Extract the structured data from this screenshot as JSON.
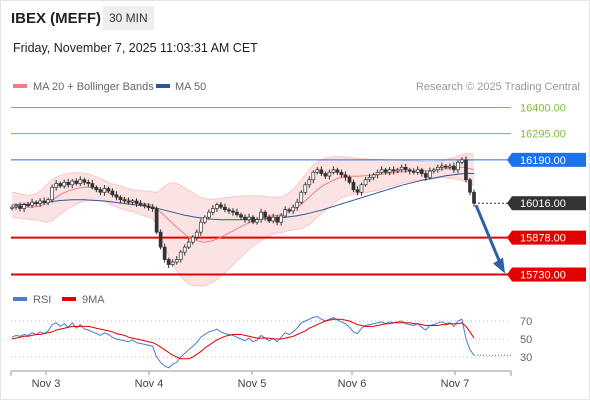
{
  "header": {
    "title": "IBEX (MEFF)",
    "timeframe": "30 MIN",
    "datetime": "Friday, November 7, 2025 11:03:31 AM CET"
  },
  "colors": {
    "bollinger": "#f08080",
    "ma50": "#2f5597",
    "candle": "#333333",
    "support": "#e50000",
    "resistance": "#7cbf3a",
    "last_price": "#333333",
    "pivot": "#1a73e8",
    "arrow": "#2c5fa8",
    "rsi": "#4a7bd0",
    "rsi_ma": "#e50000"
  },
  "legend": {
    "ma20": "MA 20 + Bollinger Bands",
    "ma50": "MA 50",
    "copyright": "Research © 2025 Trading Central"
  },
  "rsi_legend": {
    "rsi": "RSI",
    "ma": "9MA"
  },
  "chart_data": [
    {
      "type": "candlestick",
      "ylim": [
        15700,
        16430
      ],
      "x_labels": [
        "Nov 3",
        "Nov 4",
        "Nov 5",
        "Nov 6",
        "Nov 7"
      ],
      "levels": [
        {
          "label": "16400.00",
          "value": 16400.0,
          "kind": "resistance"
        },
        {
          "label": "16295.00",
          "value": 16295.0,
          "kind": "resistance"
        },
        {
          "label": "16190.00",
          "value": 16190.0,
          "kind": "pivot"
        },
        {
          "label": "16016.00",
          "value": 16016.0,
          "kind": "last"
        },
        {
          "label": "15878.00",
          "value": 15878.0,
          "kind": "support"
        },
        {
          "label": "15730.00",
          "value": 15730.0,
          "kind": "support"
        }
      ],
      "close": [
        16000,
        16005,
        15995,
        16010,
        16008,
        16020,
        16015,
        16025,
        16018,
        16030,
        16080,
        16095,
        16085,
        16100,
        16090,
        16105,
        16095,
        16110,
        16100,
        16095,
        16080,
        16070,
        16060,
        16075,
        16065,
        16050,
        16040,
        16030,
        16025,
        16020,
        16025,
        16015,
        16010,
        16005,
        15998,
        15995,
        15900,
        15840,
        15790,
        15770,
        15780,
        15790,
        15820,
        15840,
        15860,
        15880,
        15900,
        15940,
        15960,
        15980,
        15995,
        16010,
        16000,
        15990,
        15985,
        15980,
        15970,
        15960,
        15950,
        15960,
        15940,
        15950,
        15980,
        15960,
        15945,
        15960,
        15940,
        15965,
        15990,
        15985,
        16000,
        16020,
        16060,
        16090,
        16110,
        16140,
        16150,
        16135,
        16125,
        16140,
        16150,
        16140,
        16130,
        16120,
        16100,
        16070,
        16060,
        16090,
        16110,
        16120,
        16130,
        16140,
        16150,
        16140,
        16150,
        16145,
        16150,
        16160,
        16150,
        16145,
        16140,
        16150,
        16135,
        16120,
        16145,
        16150,
        16160,
        16165,
        16160,
        16165,
        16150,
        16180,
        16190,
        16110,
        16060,
        16016
      ],
      "ma20": [
        16010,
        16008,
        16005,
        16002,
        16000,
        16000,
        16002,
        16005,
        16010,
        16018,
        16028,
        16040,
        16050,
        16058,
        16065,
        16070,
        16075,
        16078,
        16080,
        16080,
        16078,
        16075,
        16070,
        16065,
        16058,
        16050,
        16045,
        16040,
        16035,
        16030,
        16026,
        16022,
        16018,
        16015,
        16012,
        16008,
        15995,
        15980,
        15965,
        15950,
        15935,
        15920,
        15905,
        15892,
        15880,
        15872,
        15866,
        15862,
        15860,
        15862,
        15866,
        15872,
        15880,
        15888,
        15896,
        15905,
        15914,
        15922,
        15930,
        15938,
        15945,
        15950,
        15956,
        15960,
        15963,
        15966,
        15968,
        15970,
        15975,
        15982,
        15990,
        16000,
        16012,
        16026,
        16040,
        16056,
        16070,
        16082,
        16092,
        16100,
        16108,
        16115,
        16120,
        16122,
        16124,
        16124,
        16124,
        16125,
        16126,
        16127,
        16128,
        16130,
        16132,
        16134,
        16136,
        16138,
        16140,
        16142,
        16143,
        16144,
        16145,
        16146,
        16146,
        16146,
        16147,
        16148,
        16150,
        16152,
        16154,
        16156,
        16157,
        16158,
        16160,
        16158,
        16155,
        16150
      ],
      "ma50": [
        16010,
        16010,
        16011,
        16012,
        16013,
        16014,
        16015,
        16017,
        16019,
        16021,
        16023,
        16025,
        16027,
        16028,
        16029,
        16030,
        16030,
        16030,
        16030,
        16029,
        16028,
        16027,
        16026,
        16025,
        16023,
        16021,
        16019,
        16017,
        16015,
        16013,
        16011,
        16009,
        16007,
        16005,
        16003,
        16000,
        15996,
        15992,
        15988,
        15984,
        15980,
        15976,
        15972,
        15968,
        15965,
        15962,
        15959,
        15957,
        15955,
        15953,
        15952,
        15951,
        15950,
        15950,
        15950,
        15950,
        15950,
        15950,
        15950,
        15950,
        15951,
        15952,
        15953,
        15954,
        15955,
        15956,
        15957,
        15958,
        15960,
        15962,
        15964,
        15966,
        15969,
        15972,
        15976,
        15980,
        15984,
        15988,
        15993,
        15998,
        16003,
        16008,
        16013,
        16018,
        16023,
        16028,
        16033,
        16038,
        16043,
        16048,
        16053,
        16058,
        16063,
        16068,
        16073,
        16078,
        16083,
        16088,
        16092,
        16096,
        16100,
        16104,
        16108,
        16111,
        16114,
        16117,
        16120,
        16123,
        16126,
        16128,
        16130,
        16132,
        16134,
        16135,
        16135,
        16135
      ],
      "bb_upper": [
        16060,
        16058,
        16055,
        16050,
        16048,
        16050,
        16055,
        16065,
        16080,
        16095,
        16110,
        16120,
        16128,
        16132,
        16135,
        16137,
        16138,
        16138,
        16136,
        16133,
        16128,
        16122,
        16115,
        16108,
        16100,
        16094,
        16090,
        16085,
        16080,
        16075,
        16070,
        16068,
        16066,
        16065,
        16064,
        16062,
        16060,
        16070,
        16085,
        16095,
        16098,
        16095,
        16088,
        16078,
        16068,
        16058,
        16048,
        16040,
        16035,
        16032,
        16032,
        16034,
        16036,
        16038,
        16040,
        16042,
        16043,
        16044,
        16045,
        16046,
        16046,
        16046,
        16046,
        16044,
        16042,
        16040,
        16040,
        16042,
        16048,
        16058,
        16072,
        16090,
        16110,
        16130,
        16150,
        16168,
        16180,
        16190,
        16196,
        16200,
        16202,
        16203,
        16203,
        16202,
        16200,
        16198,
        16196,
        16195,
        16194,
        16193,
        16192,
        16192,
        16191,
        16190,
        16190,
        16190,
        16189,
        16188,
        16187,
        16186,
        16185,
        16185,
        16184,
        16183,
        16183,
        16183,
        16184,
        16186,
        16190,
        16196,
        16200,
        16206,
        16212,
        16215,
        16215,
        16212
      ],
      "bb_lower": [
        15960,
        15958,
        15955,
        15954,
        15952,
        15950,
        15949,
        15945,
        15940,
        15941,
        15946,
        15960,
        15972,
        15984,
        15995,
        16003,
        16012,
        16018,
        16024,
        16027,
        16028,
        16028,
        16025,
        16022,
        16016,
        16006,
        16000,
        15995,
        15990,
        15985,
        15982,
        15976,
        15970,
        15965,
        15960,
        15954,
        15930,
        15890,
        15845,
        15805,
        15772,
        15745,
        15722,
        15706,
        15692,
        15686,
        15684,
        15684,
        15685,
        15692,
        15700,
        15710,
        15724,
        15738,
        15752,
        15768,
        15785,
        15800,
        15815,
        15830,
        15844,
        15854,
        15866,
        15876,
        15884,
        15892,
        15896,
        15898,
        15902,
        15906,
        15908,
        15910,
        15914,
        15922,
        15930,
        15944,
        15960,
        15974,
        15988,
        16000,
        16014,
        16027,
        16037,
        16042,
        16048,
        16050,
        16052,
        16055,
        16058,
        16061,
        16064,
        16068,
        16073,
        16078,
        16082,
        16086,
        16091,
        16096,
        16099,
        16102,
        16105,
        16107,
        16108,
        16109,
        16111,
        16113,
        16116,
        16118,
        16118,
        16116,
        16114,
        16110,
        16108,
        16101,
        16095,
        16088
      ]
    },
    {
      "type": "line",
      "ylim": [
        20,
        80
      ],
      "y_ticks": [
        "70",
        "50",
        "30"
      ],
      "series": [
        {
          "name": "RSI",
          "values": [
            52,
            54,
            53,
            55,
            54,
            57,
            55,
            58,
            56,
            59,
            66,
            68,
            64,
            67,
            63,
            68,
            62,
            66,
            61,
            60,
            58,
            56,
            54,
            57,
            55,
            52,
            50,
            49,
            48,
            47,
            49,
            46,
            45,
            44,
            43,
            42,
            30,
            24,
            20,
            18,
            22,
            24,
            30,
            34,
            38,
            42,
            46,
            52,
            55,
            58,
            59,
            61,
            58,
            56,
            55,
            54,
            52,
            50,
            48,
            51,
            47,
            49,
            54,
            51,
            48,
            51,
            47,
            52,
            57,
            55,
            58,
            62,
            68,
            70,
            72,
            74,
            75,
            72,
            70,
            72,
            74,
            71,
            69,
            67,
            63,
            58,
            56,
            62,
            65,
            66,
            67,
            68,
            69,
            67,
            69,
            68,
            69,
            70,
            67,
            66,
            65,
            67,
            63,
            60,
            65,
            66,
            68,
            69,
            67,
            68,
            64,
            70,
            72,
            50,
            38,
            32
          ]
        },
        {
          "name": "9MA",
          "values": [
            50,
            51,
            52,
            53,
            53,
            54,
            55,
            55,
            56,
            57,
            58,
            60,
            61,
            62,
            63,
            64,
            64,
            64,
            64,
            64,
            63,
            62,
            61,
            60,
            59,
            58,
            56,
            55,
            54,
            52,
            51,
            50,
            49,
            48,
            47,
            46,
            44,
            41,
            38,
            35,
            32,
            30,
            28,
            28,
            28,
            30,
            33,
            36,
            40,
            43,
            46,
            49,
            51,
            53,
            54,
            55,
            55,
            55,
            54,
            53,
            52,
            51,
            51,
            51,
            51,
            50,
            50,
            50,
            51,
            52,
            53,
            55,
            57,
            59,
            62,
            64,
            66,
            68,
            70,
            71,
            72,
            72,
            72,
            71,
            70,
            68,
            66,
            65,
            64,
            64,
            64,
            65,
            66,
            67,
            67,
            68,
            68,
            68,
            68,
            68,
            67,
            67,
            66,
            65,
            65,
            65,
            65,
            66,
            66,
            67,
            67,
            67,
            68,
            64,
            58,
            51
          ]
        }
      ]
    }
  ]
}
